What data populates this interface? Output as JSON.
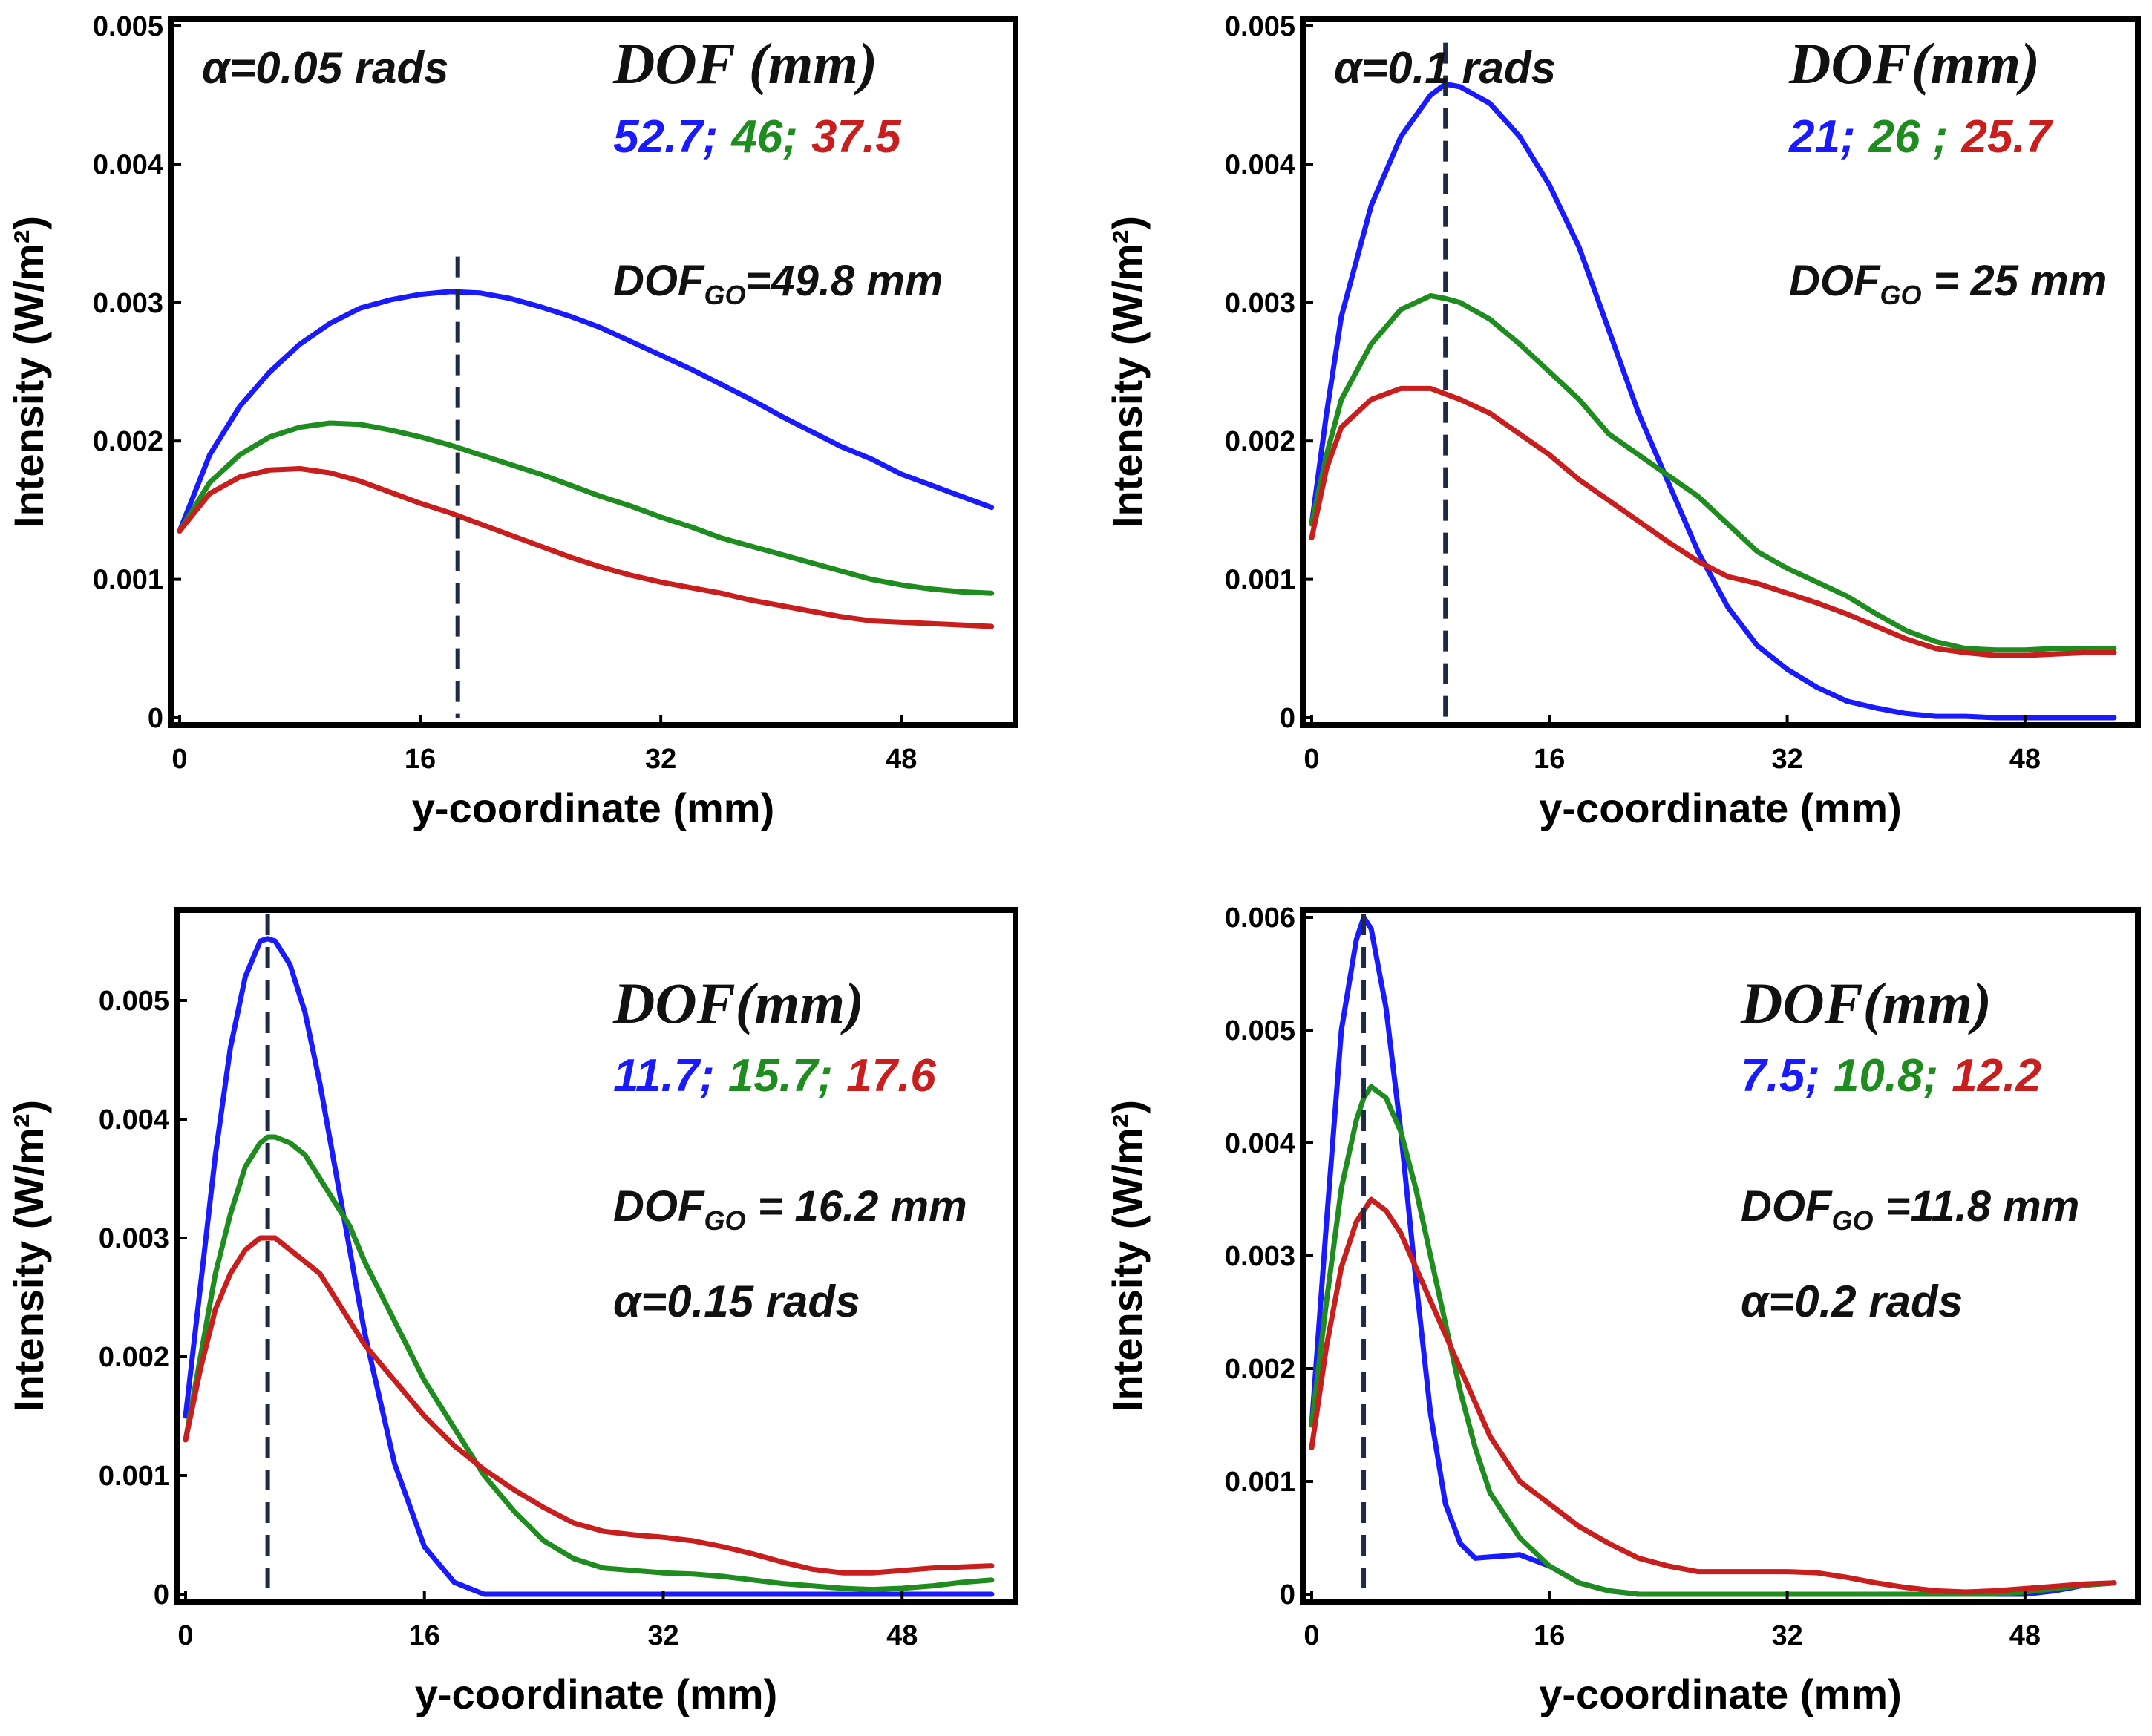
{
  "figure": {
    "panels": [
      {
        "alpha_text": "α=0.05 rads",
        "dof_title": "DOF (mm)",
        "dof_values": [
          {
            "text": "52.7;",
            "color": "#1a1aff"
          },
          {
            "text": "46;",
            "color": "#1f8c1f"
          },
          {
            "text": "37.5",
            "color": "#c81e1e"
          }
        ],
        "dofgo_prefix": "DOF",
        "dofgo_sub": "GO",
        "dofgo_value": "=49.8 mm"
      },
      {
        "alpha_text": "α=0.1 rads",
        "dof_title": "DOF(mm)",
        "dof_values": [
          {
            "text": "21;",
            "color": "#1a1aff"
          },
          {
            "text": "26 ;",
            "color": "#1f8c1f"
          },
          {
            "text": "25.7",
            "color": "#c81e1e"
          }
        ],
        "dofgo_prefix": "DOF",
        "dofgo_sub": "GO",
        "dofgo_value": " = 25 mm"
      },
      {
        "alpha_text": "α=0.15 rads",
        "dof_title": "DOF(mm)",
        "dof_values": [
          {
            "text": "11.7;",
            "color": "#1a1aff"
          },
          {
            "text": "15.7;",
            "color": "#1f8c1f"
          },
          {
            "text": "17.6",
            "color": "#c81e1e"
          }
        ],
        "dofgo_prefix": "DOF",
        "dofgo_sub": "GO",
        "dofgo_value": " = 16.2 mm"
      },
      {
        "alpha_text": "α=0.2 rads",
        "dof_title": "DOF(mm)",
        "dof_values": [
          {
            "text": "7.5;",
            "color": "#1a1aff"
          },
          {
            "text": "10.8;",
            "color": "#1f8c1f"
          },
          {
            "text": "12.2",
            "color": "#c81e1e"
          }
        ],
        "dofgo_prefix": "DOF",
        "dofgo_sub": "GO",
        "dofgo_value": " =11.8 mm"
      }
    ]
  },
  "chart_data": [
    {
      "type": "line",
      "title": "α=0.05 rads",
      "xlabel": "y-coordinate (mm)",
      "ylabel": "Intensity (W/m²)",
      "xlim": [
        0,
        55
      ],
      "ylim": [
        0,
        0.005
      ],
      "xticks": [
        "0",
        "16",
        "32",
        "48"
      ],
      "yticks": [
        "0",
        "0.001",
        "0.002",
        "0.003",
        "0.004",
        "0.005"
      ],
      "focus_line_x": 18.5,
      "colors": [
        "#1a1aff",
        "#1f8c1f",
        "#c81e1e"
      ],
      "x": [
        0,
        2,
        4,
        6,
        8,
        10,
        12,
        14,
        16,
        18,
        20,
        22,
        24,
        26,
        28,
        30,
        32,
        34,
        36,
        38,
        40,
        42,
        44,
        46,
        48,
        50,
        52,
        54
      ],
      "series": [
        {
          "name": "52.7",
          "values": [
            0.00135,
            0.0019,
            0.00225,
            0.0025,
            0.0027,
            0.00285,
            0.00296,
            0.00302,
            0.00306,
            0.00308,
            0.00307,
            0.00303,
            0.00297,
            0.0029,
            0.00282,
            0.00272,
            0.00262,
            0.00252,
            0.00241,
            0.0023,
            0.00218,
            0.00207,
            0.00196,
            0.00187,
            0.00176,
            0.00168,
            0.0016,
            0.00152
          ]
        },
        {
          "name": "46",
          "values": [
            0.00135,
            0.0017,
            0.0019,
            0.00203,
            0.0021,
            0.00213,
            0.00212,
            0.00208,
            0.00203,
            0.00197,
            0.0019,
            0.00183,
            0.00176,
            0.00168,
            0.0016,
            0.00153,
            0.00145,
            0.00138,
            0.0013,
            0.00124,
            0.00118,
            0.00112,
            0.00106,
            0.001,
            0.00096,
            0.00093,
            0.00091,
            0.0009
          ]
        },
        {
          "name": "37.5",
          "values": [
            0.00135,
            0.00162,
            0.00174,
            0.00179,
            0.0018,
            0.00177,
            0.00171,
            0.00163,
            0.00155,
            0.00148,
            0.0014,
            0.00132,
            0.00124,
            0.00116,
            0.00109,
            0.00103,
            0.00098,
            0.00094,
            0.0009,
            0.00085,
            0.00081,
            0.00077,
            0.00073,
            0.0007,
            0.00069,
            0.00068,
            0.00067,
            0.00066
          ]
        }
      ]
    },
    {
      "type": "line",
      "title": "α=0.1 rads",
      "xlabel": "y-coordinate (mm)",
      "ylabel": "Intensity (W/m²)",
      "xlim": [
        0,
        55
      ],
      "ylim": [
        0,
        0.005
      ],
      "xticks": [
        "0",
        "16",
        "32",
        "48"
      ],
      "yticks": [
        "0",
        "0.001",
        "0.002",
        "0.003",
        "0.004",
        "0.005"
      ],
      "focus_line_x": 9,
      "colors": [
        "#1a1aff",
        "#1f8c1f",
        "#c81e1e"
      ],
      "x": [
        0,
        1,
        2,
        4,
        6,
        8,
        9,
        10,
        12,
        14,
        16,
        18,
        20,
        22,
        24,
        26,
        28,
        30,
        32,
        34,
        36,
        38,
        40,
        42,
        44,
        46,
        48,
        50,
        52,
        54
      ],
      "series": [
        {
          "name": "21",
          "values": [
            0.0014,
            0.0022,
            0.0029,
            0.0037,
            0.0042,
            0.0045,
            0.00458,
            0.00456,
            0.00444,
            0.0042,
            0.00385,
            0.0034,
            0.0028,
            0.0022,
            0.0017,
            0.0012,
            0.0008,
            0.00052,
            0.00035,
            0.00022,
            0.00012,
            7e-05,
            3e-05,
            1e-05,
            1e-05,
            0.0,
            0.0,
            0.0,
            0.0,
            0.0
          ]
        },
        {
          "name": "26",
          "values": [
            0.0014,
            0.0019,
            0.0023,
            0.0027,
            0.00295,
            0.00305,
            0.00303,
            0.003,
            0.00288,
            0.0027,
            0.0025,
            0.0023,
            0.00205,
            0.0019,
            0.00175,
            0.0016,
            0.0014,
            0.0012,
            0.00108,
            0.00098,
            0.00088,
            0.00075,
            0.00063,
            0.00055,
            0.0005,
            0.00049,
            0.00049,
            0.0005,
            0.0005,
            0.0005
          ]
        },
        {
          "name": "25.7",
          "values": [
            0.0013,
            0.0018,
            0.0021,
            0.0023,
            0.00238,
            0.00238,
            0.00234,
            0.0023,
            0.0022,
            0.00205,
            0.0019,
            0.00172,
            0.00157,
            0.00142,
            0.00127,
            0.00113,
            0.00102,
            0.00097,
            0.0009,
            0.00083,
            0.00075,
            0.00066,
            0.00057,
            0.0005,
            0.00047,
            0.00045,
            0.00045,
            0.00046,
            0.00047,
            0.00047
          ]
        }
      ]
    },
    {
      "type": "line",
      "title": "α=0.15 rads",
      "xlabel": "y-coordinate (mm)",
      "ylabel": "Intensity (W/m²)",
      "xlim": [
        0,
        55
      ],
      "ylim": [
        0,
        0.0057
      ],
      "xticks": [
        "0",
        "16",
        "32",
        "48"
      ],
      "yticks": [
        "0",
        "0.001",
        "0.002",
        "0.003",
        "0.004",
        "0.005"
      ],
      "focus_line_x": 5.5,
      "colors": [
        "#1a1aff",
        "#1f8c1f",
        "#c81e1e"
      ],
      "x": [
        0,
        1,
        2,
        3,
        4,
        5,
        5.5,
        6,
        7,
        8,
        9,
        10,
        11,
        12,
        14,
        16,
        18,
        20,
        22,
        24,
        26,
        28,
        30,
        32,
        34,
        36,
        38,
        40,
        42,
        44,
        46,
        48,
        50,
        52,
        54
      ],
      "series": [
        {
          "name": "11.7",
          "values": [
            0.0015,
            0.0026,
            0.0037,
            0.0046,
            0.0052,
            0.0055,
            0.00552,
            0.0055,
            0.0053,
            0.0049,
            0.0043,
            0.0036,
            0.0029,
            0.0022,
            0.0011,
            0.0004,
            0.0001,
            0.0,
            0.0,
            0.0,
            0.0,
            0.0,
            0.0,
            0.0,
            0.0,
            0.0,
            0.0,
            0.0,
            0.0,
            0.0,
            0.0,
            0.0,
            0.0,
            0.0,
            0.0
          ]
        },
        {
          "name": "15.7",
          "values": [
            0.0013,
            0.002,
            0.0027,
            0.0032,
            0.0036,
            0.0038,
            0.00385,
            0.00385,
            0.0038,
            0.0037,
            0.0035,
            0.0033,
            0.0031,
            0.0028,
            0.0023,
            0.0018,
            0.0014,
            0.001,
            0.0007,
            0.00045,
            0.0003,
            0.00022,
            0.0002,
            0.00018,
            0.00017,
            0.00015,
            0.00012,
            9e-05,
            7e-05,
            5e-05,
            4e-05,
            5e-05,
            7e-05,
            0.0001,
            0.00012
          ]
        },
        {
          "name": "17.6",
          "values": [
            0.0013,
            0.0019,
            0.0024,
            0.0027,
            0.0029,
            0.003,
            0.003,
            0.003,
            0.0029,
            0.0028,
            0.0027,
            0.0025,
            0.0023,
            0.0021,
            0.0018,
            0.0015,
            0.00125,
            0.00105,
            0.00088,
            0.00073,
            0.0006,
            0.00053,
            0.0005,
            0.00048,
            0.00045,
            0.0004,
            0.00034,
            0.00027,
            0.00021,
            0.00018,
            0.00018,
            0.0002,
            0.00022,
            0.00023,
            0.00024
          ]
        }
      ]
    },
    {
      "type": "line",
      "title": "α=0.2 rads",
      "xlabel": "y-coordinate (mm)",
      "ylabel": "Intensity (W/m²)",
      "xlim": [
        0,
        55
      ],
      "ylim": [
        0,
        0.006
      ],
      "xticks": [
        "0",
        "16",
        "32",
        "48"
      ],
      "yticks": [
        "0",
        "0.001",
        "0.002",
        "0.003",
        "0.004",
        "0.005",
        "0.006"
      ],
      "focus_line_x": 3.5,
      "colors": [
        "#1a1aff",
        "#1f8c1f",
        "#c81e1e"
      ],
      "x": [
        0,
        1,
        2,
        3,
        3.5,
        4,
        5,
        6,
        7,
        8,
        9,
        10,
        11,
        12,
        14,
        16,
        18,
        20,
        22,
        24,
        26,
        28,
        30,
        32,
        34,
        36,
        38,
        40,
        42,
        44,
        46,
        48,
        50,
        52,
        54
      ],
      "series": [
        {
          "name": "7.5",
          "values": [
            0.0015,
            0.0033,
            0.005,
            0.0058,
            0.006,
            0.0059,
            0.0052,
            0.0041,
            0.0028,
            0.0016,
            0.0008,
            0.00045,
            0.00032,
            0.00033,
            0.00035,
            0.00025,
            0.0001,
            3e-05,
            0.0,
            0.0,
            0.0,
            0.0,
            0.0,
            0.0,
            0.0,
            0.0,
            0.0,
            0.0,
            0.0,
            0.0,
            0.0,
            0.0,
            3e-05,
            8e-05,
            0.0001
          ]
        },
        {
          "name": "10.8",
          "values": [
            0.0015,
            0.0026,
            0.0036,
            0.0042,
            0.0044,
            0.0045,
            0.0044,
            0.0041,
            0.0036,
            0.003,
            0.0024,
            0.0018,
            0.0013,
            0.0009,
            0.0005,
            0.00025,
            0.0001,
            3e-05,
            0.0,
            0.0,
            0.0,
            0.0,
            0.0,
            0.0,
            0.0,
            0.0,
            0.0,
            0.0,
            0.0,
            0.0,
            0.0,
            2e-05,
            5e-05,
            8e-05,
            0.0001
          ]
        },
        {
          "name": "12.2",
          "values": [
            0.0013,
            0.0022,
            0.0029,
            0.0033,
            0.0034,
            0.0035,
            0.0034,
            0.0032,
            0.0029,
            0.0026,
            0.0023,
            0.002,
            0.0017,
            0.0014,
            0.001,
            0.0008,
            0.0006,
            0.00045,
            0.00032,
            0.00025,
            0.0002,
            0.0002,
            0.0002,
            0.0002,
            0.00019,
            0.00015,
            0.0001,
            6e-05,
            3e-05,
            2e-05,
            3e-05,
            5e-05,
            7e-05,
            9e-05,
            0.0001
          ]
        }
      ]
    }
  ]
}
